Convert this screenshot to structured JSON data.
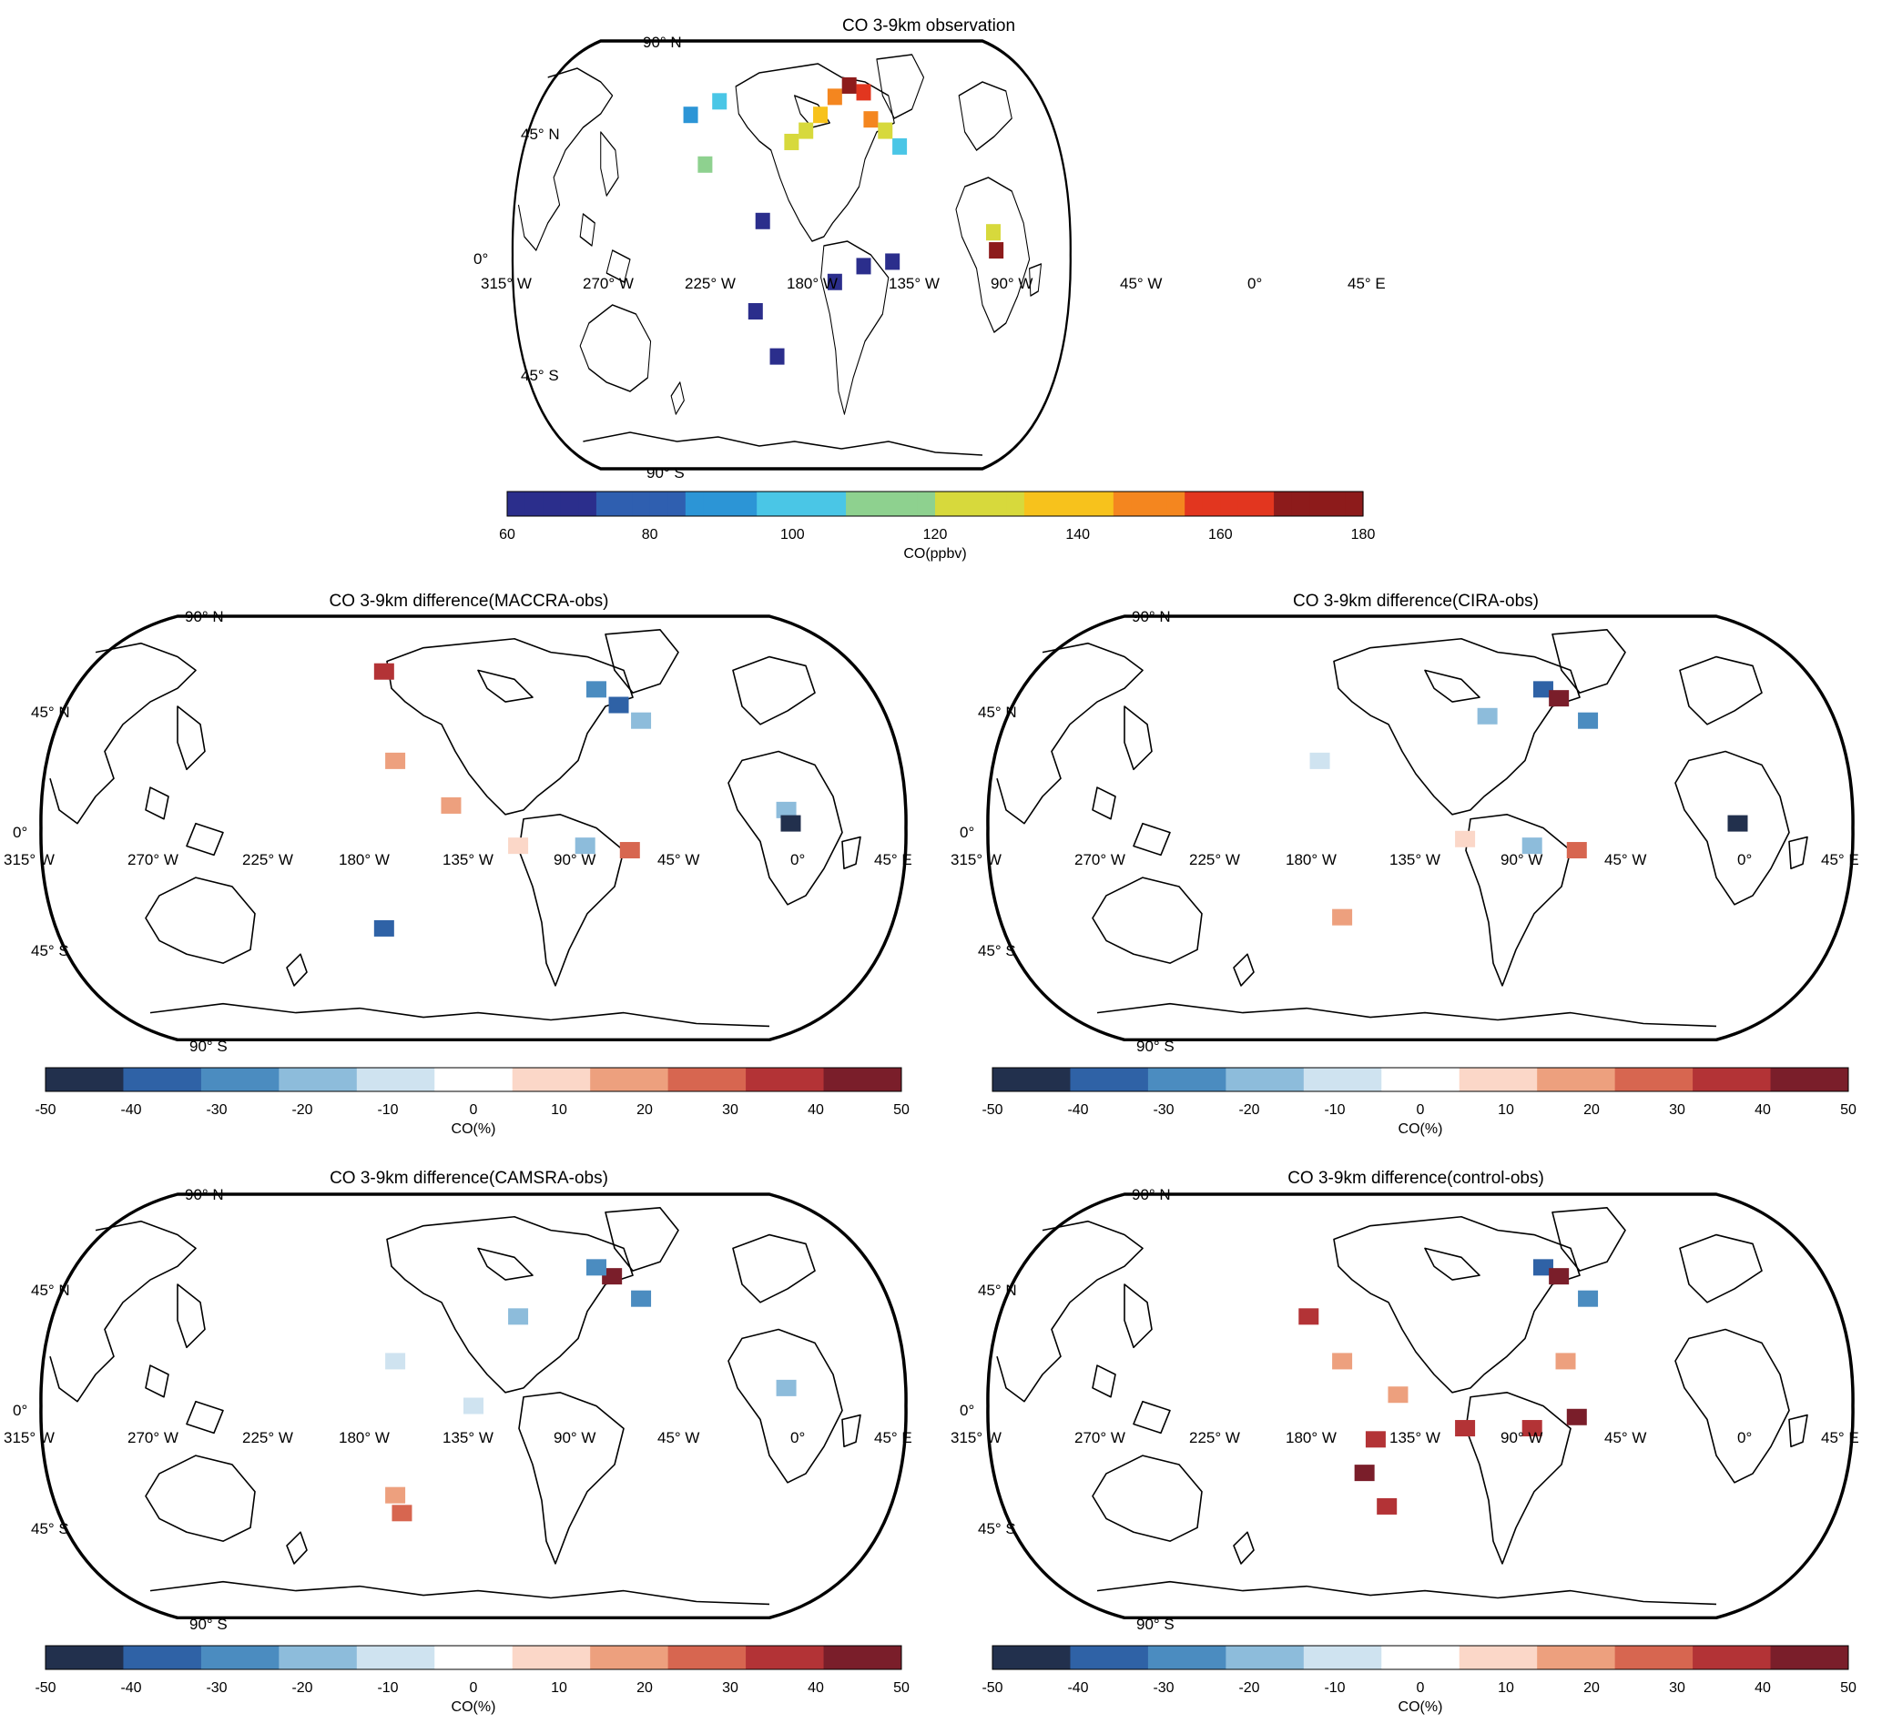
{
  "panels": [
    {
      "title": "CO 3-9km observation",
      "colorbar": {
        "label": "CO(ppbv)",
        "ticks": [
          "60",
          "80",
          "100",
          "120",
          "140",
          "160",
          "180"
        ],
        "colormap": "jet-like continuous",
        "vmin": 60,
        "vmax": 180
      }
    },
    {
      "title": "CO 3-9km difference(MACCRA-obs)",
      "colorbar": {
        "label": "CO(%)",
        "ticks": [
          "-50",
          "-40",
          "-30",
          "-20",
          "-10",
          "0",
          "10",
          "20",
          "30",
          "40",
          "50"
        ],
        "colormap": "blue-white-red diverging, 11 discrete classes",
        "vmin": -50,
        "vmax": 50
      }
    },
    {
      "title": "CO 3-9km difference(CIRA-obs)",
      "colorbar": {
        "label": "CO(%)",
        "ticks": [
          "-50",
          "-40",
          "-30",
          "-20",
          "-10",
          "0",
          "10",
          "20",
          "30",
          "40",
          "50"
        ],
        "colormap": "blue-white-red diverging, 11 discrete classes",
        "vmin": -50,
        "vmax": 50
      }
    },
    {
      "title": "CO 3-9km difference(CAMSRA-obs)",
      "colorbar": {
        "label": "CO(%)",
        "ticks": [
          "-50",
          "-40",
          "-30",
          "-20",
          "-10",
          "0",
          "10",
          "20",
          "30",
          "40",
          "50"
        ],
        "colormap": "blue-white-red diverging, 11 discrete classes",
        "vmin": -50,
        "vmax": 50
      }
    },
    {
      "title": "CO 3-9km difference(control-obs)",
      "colorbar": {
        "label": "CO(%)",
        "ticks": [
          "-50",
          "-40",
          "-30",
          "-20",
          "-10",
          "0",
          "10",
          "20",
          "30",
          "40",
          "50"
        ],
        "colormap": "blue-white-red diverging, 11 discrete classes",
        "vmin": -50,
        "vmax": 50
      }
    }
  ],
  "map_labels": {
    "lat": [
      {
        "id": "n90",
        "text": "90° N"
      },
      {
        "id": "n45",
        "text": "45° N"
      },
      {
        "id": "eq",
        "text": "0°"
      },
      {
        "id": "s45",
        "text": "45° S"
      },
      {
        "id": "s90",
        "text": "90° S"
      }
    ],
    "lon": [
      "315° W",
      "270° W",
      "225° W",
      "180° W",
      "135° W",
      "90° W",
      "45° W",
      "0°",
      "45° E"
    ]
  },
  "colors": {
    "obs_cmap": [
      "#2b2e8c",
      "#2f5fb0",
      "#2c95d6",
      "#4ac6e6",
      "#8ed18f",
      "#d7d93c",
      "#f7c21c",
      "#f4861f",
      "#e2361f",
      "#8d1b1b"
    ],
    "diff_cmap": [
      "#22304d",
      "#2f62a6",
      "#4b8cc0",
      "#8dbcdb",
      "#cfe3f0",
      "#ffffff",
      "#fbd7c8",
      "#eda07e",
      "#d76650",
      "#b33336",
      "#7a1e2a"
    ]
  },
  "chart_data": [
    {
      "type": "heatmap",
      "title": "CO 3-9km observation",
      "projection": "Robinson-like world map, Pacific-centred",
      "value_units": "ppbv",
      "colorbar_range": [
        60,
        180
      ],
      "cells": [
        {
          "lon": -120,
          "lat": 70,
          "value": 150
        },
        {
          "lon": -110,
          "lat": 75,
          "value": 175
        },
        {
          "lon": -100,
          "lat": 72,
          "value": 165
        },
        {
          "lon": -130,
          "lat": 62,
          "value": 140
        },
        {
          "lon": -140,
          "lat": 55,
          "value": 130
        },
        {
          "lon": -150,
          "lat": 50,
          "value": 125
        },
        {
          "lon": -95,
          "lat": 60,
          "value": 150
        },
        {
          "lon": -85,
          "lat": 55,
          "value": 120
        },
        {
          "lon": -75,
          "lat": 48,
          "value": 100
        },
        {
          "lon": 160,
          "lat": 68,
          "value": 100
        },
        {
          "lon": 140,
          "lat": 62,
          "value": 95
        },
        {
          "lon": 150,
          "lat": 40,
          "value": 110
        },
        {
          "lon": -10,
          "lat": 10,
          "value": 130
        },
        {
          "lon": -8,
          "lat": 2,
          "value": 175
        },
        {
          "lon": -170,
          "lat": 15,
          "value": 62
        },
        {
          "lon": -175,
          "lat": -25,
          "value": 62
        },
        {
          "lon": -160,
          "lat": -45,
          "value": 60
        },
        {
          "lon": -120,
          "lat": -12,
          "value": 62
        },
        {
          "lon": -100,
          "lat": -5,
          "value": 63
        },
        {
          "lon": -80,
          "lat": -3,
          "value": 63
        }
      ]
    },
    {
      "type": "heatmap",
      "title": "CO 3-9km difference(MACCRA-obs)",
      "value_units": "%",
      "colorbar_range": [
        -50,
        50
      ],
      "cells": [
        {
          "lon": -95,
          "lat": 62,
          "value": -30
        },
        {
          "lon": -85,
          "lat": 55,
          "value": -35
        },
        {
          "lon": -75,
          "lat": 48,
          "value": -20
        },
        {
          "lon": 170,
          "lat": 70,
          "value": 40
        },
        {
          "lon": 175,
          "lat": 30,
          "value": 15
        },
        {
          "lon": -160,
          "lat": 10,
          "value": 15
        },
        {
          "lon": -130,
          "lat": -8,
          "value": 10
        },
        {
          "lon": -100,
          "lat": -8,
          "value": -20
        },
        {
          "lon": -80,
          "lat": -10,
          "value": 30
        },
        {
          "lon": -10,
          "lat": 8,
          "value": -20
        },
        {
          "lon": -8,
          "lat": 2,
          "value": -45
        },
        {
          "lon": 170,
          "lat": -45,
          "value": -40
        }
      ]
    },
    {
      "type": "heatmap",
      "title": "CO 3-9km difference(CIRA-obs)",
      "value_units": "%",
      "colorbar_range": [
        -50,
        50
      ],
      "cells": [
        {
          "lon": -95,
          "lat": 62,
          "value": -35
        },
        {
          "lon": -88,
          "lat": 58,
          "value": 45
        },
        {
          "lon": -75,
          "lat": 48,
          "value": -25
        },
        {
          "lon": -120,
          "lat": 50,
          "value": -15
        },
        {
          "lon": 165,
          "lat": 30,
          "value": -10
        },
        {
          "lon": -130,
          "lat": -5,
          "value": 10
        },
        {
          "lon": -100,
          "lat": -8,
          "value": -15
        },
        {
          "lon": -80,
          "lat": -10,
          "value": 25
        },
        {
          "lon": -8,
          "lat": 2,
          "value": -45
        },
        {
          "lon": 175,
          "lat": -40,
          "value": 15
        }
      ]
    },
    {
      "type": "heatmap",
      "title": "CO 3-9km difference(CAMSRA-obs)",
      "value_units": "%",
      "colorbar_range": [
        -50,
        50
      ],
      "cells": [
        {
          "lon": -88,
          "lat": 58,
          "value": 50
        },
        {
          "lon": -95,
          "lat": 62,
          "value": -30
        },
        {
          "lon": -75,
          "lat": 48,
          "value": -25
        },
        {
          "lon": -130,
          "lat": 40,
          "value": -15
        },
        {
          "lon": 175,
          "lat": 20,
          "value": -10
        },
        {
          "lon": -150,
          "lat": 0,
          "value": -10
        },
        {
          "lon": -10,
          "lat": 8,
          "value": -20
        },
        {
          "lon": 175,
          "lat": -40,
          "value": 15
        },
        {
          "lon": 178,
          "lat": -48,
          "value": 30
        }
      ]
    },
    {
      "type": "heatmap",
      "title": "CO 3-9km difference(control-obs)",
      "value_units": "%",
      "colorbar_range": [
        -50,
        50
      ],
      "cells": [
        {
          "lon": -95,
          "lat": 62,
          "value": -35
        },
        {
          "lon": -88,
          "lat": 58,
          "value": 45
        },
        {
          "lon": -75,
          "lat": 48,
          "value": -25
        },
        {
          "lon": 160,
          "lat": 40,
          "value": 35
        },
        {
          "lon": 175,
          "lat": 20,
          "value": 15
        },
        {
          "lon": -160,
          "lat": 5,
          "value": 20
        },
        {
          "lon": -170,
          "lat": -15,
          "value": 40
        },
        {
          "lon": -175,
          "lat": -30,
          "value": 45
        },
        {
          "lon": -165,
          "lat": -45,
          "value": 40
        },
        {
          "lon": -130,
          "lat": -10,
          "value": 40
        },
        {
          "lon": -100,
          "lat": -10,
          "value": 40
        },
        {
          "lon": -80,
          "lat": -5,
          "value": 45
        },
        {
          "lon": -85,
          "lat": 20,
          "value": 20
        }
      ]
    }
  ]
}
